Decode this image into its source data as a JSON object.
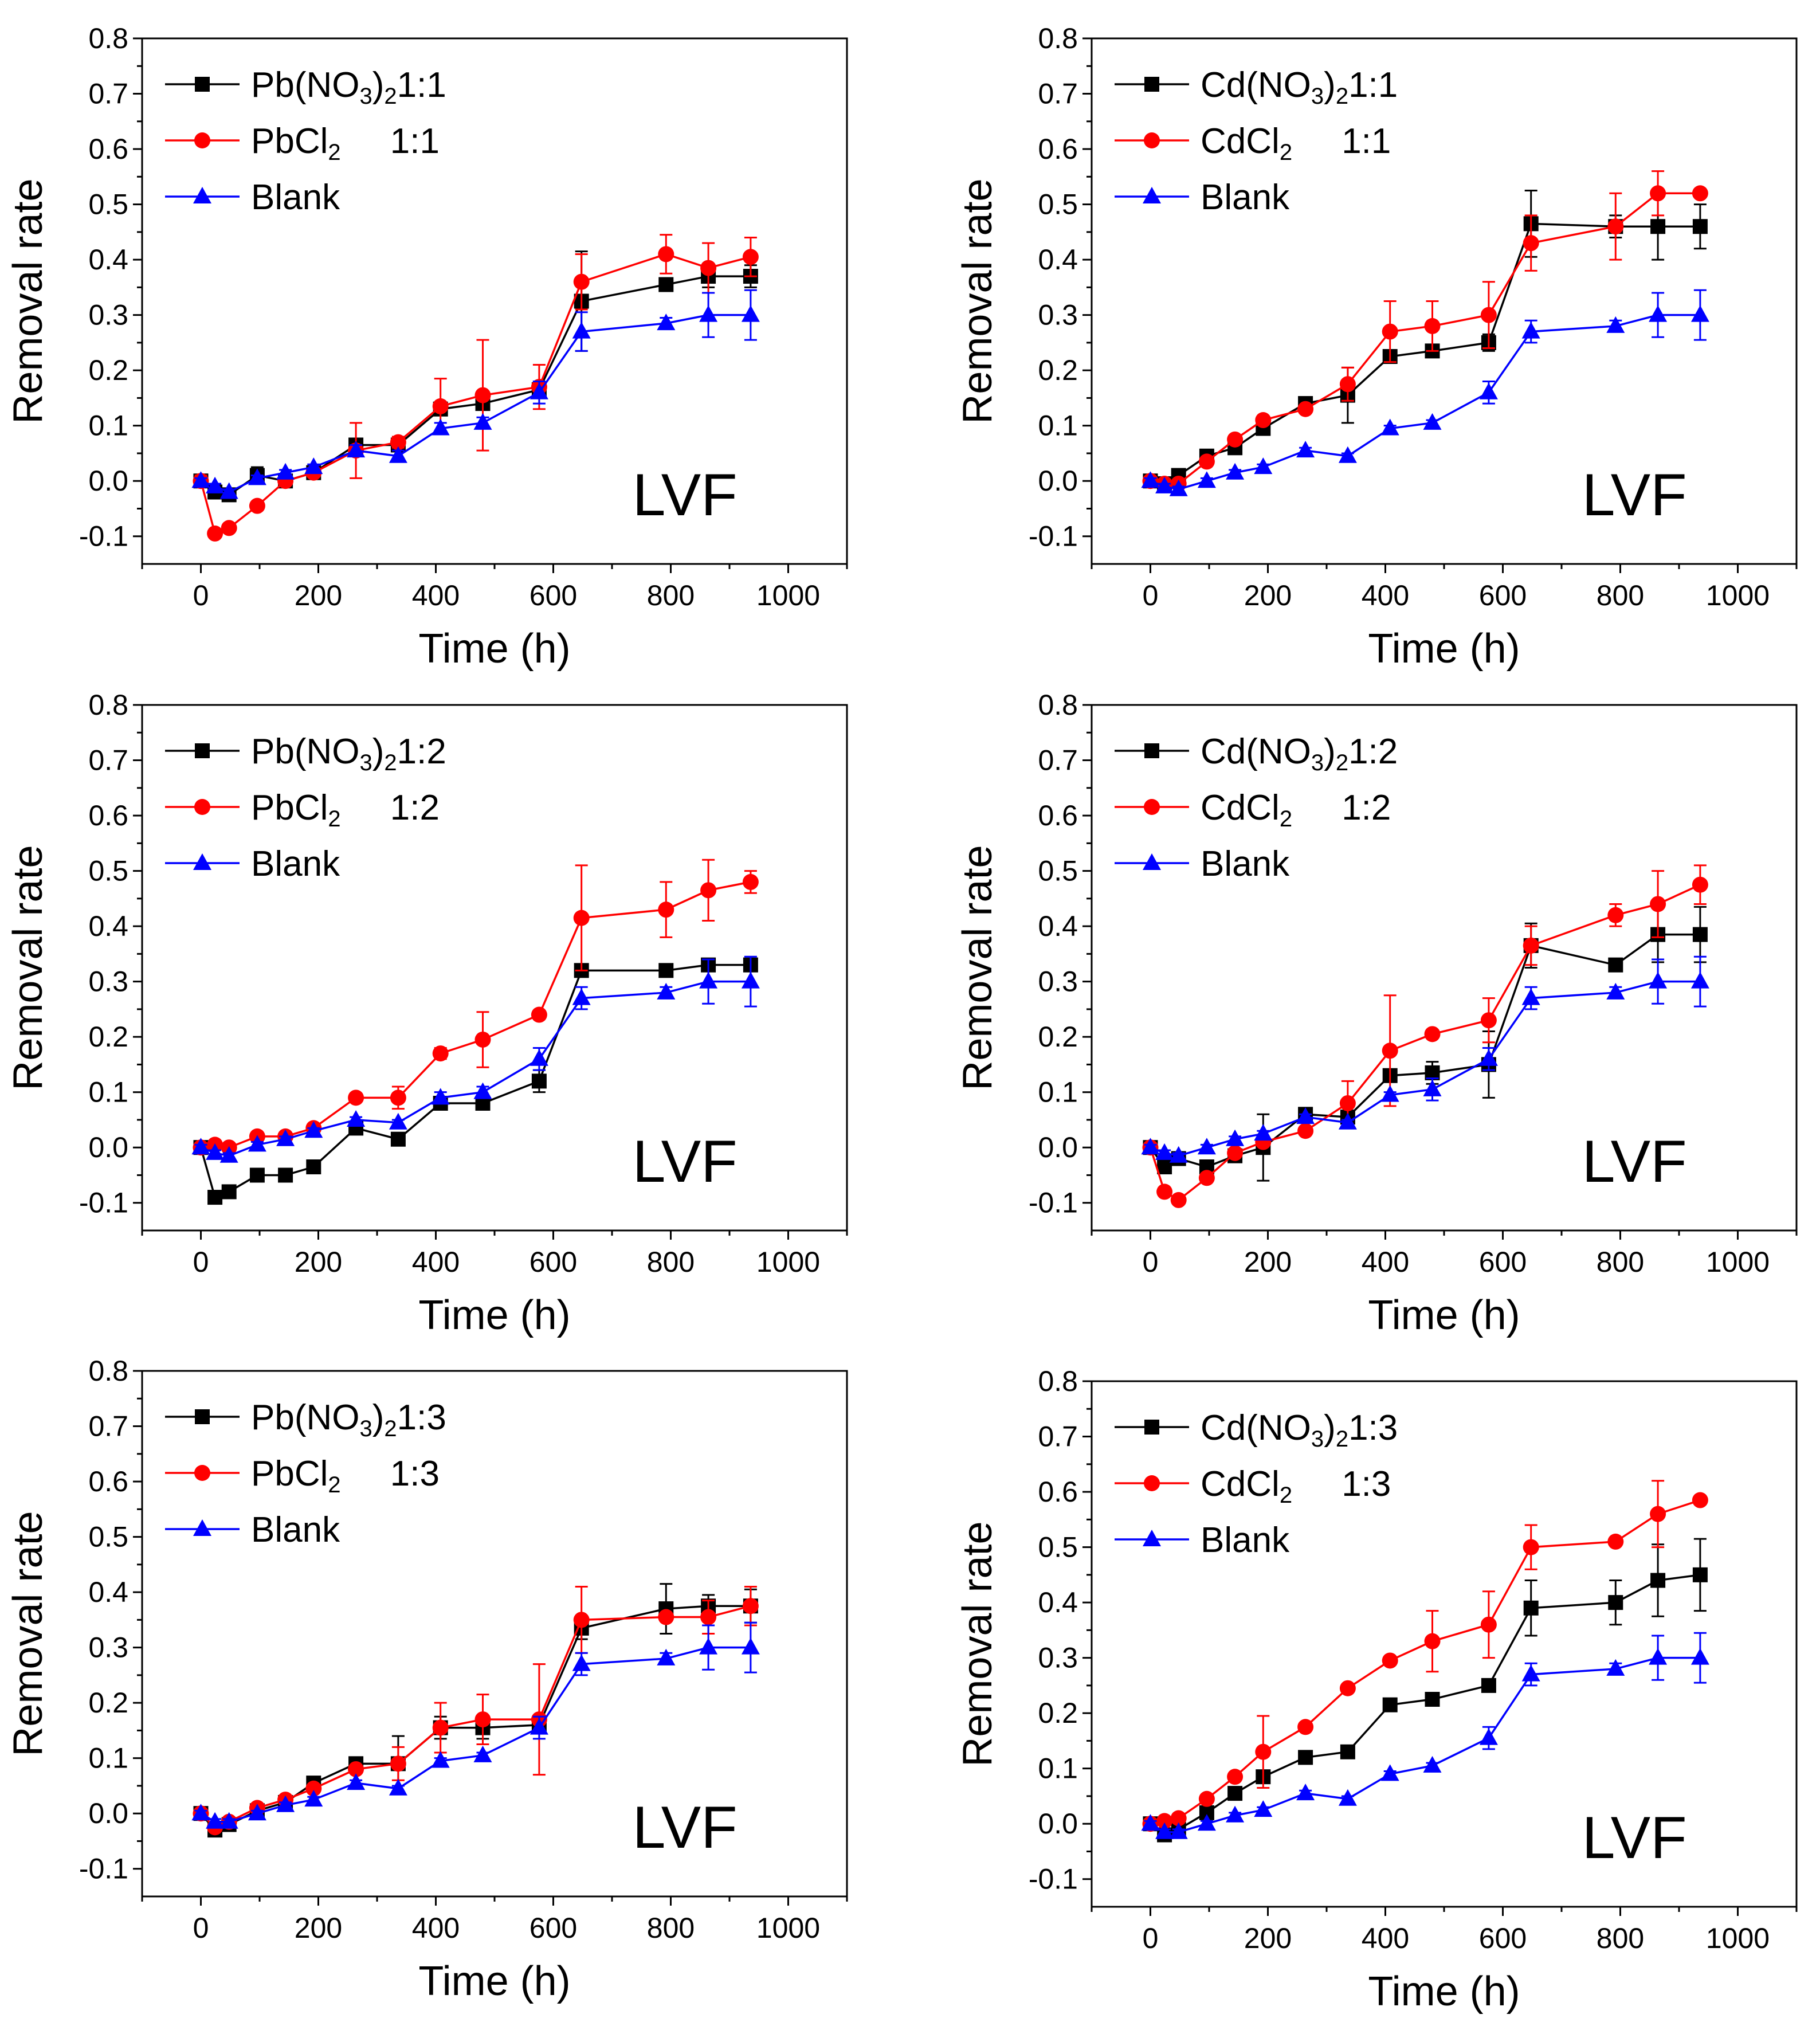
{
  "figure": {
    "panels_layout": "3 rows x 2 columns",
    "colors": {
      "series1": "#000000",
      "series2": "#ff0000",
      "series3": "#0000ff"
    }
  },
  "chart_data": [
    {
      "type": "line",
      "panel_label": "LVF",
      "xlabel": "Time (h)",
      "ylabel": "Removal rate",
      "xlim": [
        -100,
        1100
      ],
      "ylim": [
        -0.15,
        0.8
      ],
      "xticks": [
        "0",
        "200",
        "400",
        "600",
        "800",
        "1000"
      ],
      "yticks": [
        "-0.1",
        "0.0",
        "0.1",
        "0.2",
        "0.3",
        "0.4",
        "0.5",
        "0.6",
        "0.7",
        "0.8"
      ],
      "x": [
        0,
        24,
        48,
        96,
        144,
        192,
        264,
        336,
        408,
        480,
        576,
        648,
        792,
        864,
        936
      ],
      "legend": [
        {
          "prefix": "Pb(NO",
          "sub1": "3",
          "mid": ")",
          "sub2": "2",
          "suffix": "1:1"
        },
        {
          "prefix": "PbCl",
          "sub1": "2",
          "suffix": "     1:1"
        },
        {
          "prefix": "Blank"
        }
      ],
      "series": [
        {
          "name": "Pb(NO3)2 1:1",
          "marker": "square",
          "values": [
            0.0,
            -0.02,
            -0.025,
            0.01,
            0.0,
            0.015,
            0.065,
            0.065,
            0.13,
            0.14,
            0.165,
            0.325,
            0.355,
            0.37,
            0.37
          ],
          "errors": [
            0.01,
            0.01,
            0.01,
            0.015,
            0.01,
            0.01,
            0.01,
            0.01,
            0.01,
            0.01,
            0.015,
            0.09,
            0.01,
            0.02,
            0.02
          ]
        },
        {
          "name": "PbCl2 1:1",
          "marker": "circle",
          "values": [
            0.0,
            -0.095,
            -0.085,
            -0.045,
            0.0,
            0.015,
            0.055,
            0.07,
            0.135,
            0.155,
            0.17,
            0.36,
            0.41,
            0.385,
            0.405
          ],
          "errors": [
            0.01,
            0.005,
            0.005,
            0.005,
            0.005,
            0.005,
            0.05,
            0.01,
            0.05,
            0.1,
            0.04,
            0.05,
            0.035,
            0.045,
            0.035
          ]
        },
        {
          "name": "Blank",
          "marker": "triangle",
          "values": [
            0.0,
            -0.01,
            -0.02,
            0.005,
            0.015,
            0.025,
            0.055,
            0.045,
            0.095,
            0.105,
            0.16,
            0.27,
            0.285,
            0.3,
            0.3
          ],
          "errors": [
            0.005,
            0.005,
            0.005,
            0.005,
            0.005,
            0.005,
            0.01,
            0.01,
            0.01,
            0.01,
            0.02,
            0.035,
            0.01,
            0.04,
            0.045
          ]
        }
      ]
    },
    {
      "type": "line",
      "panel_label": "LVF",
      "xlabel": "Time (h)",
      "ylabel": "Removal rate",
      "xlim": [
        -100,
        1100
      ],
      "ylim": [
        -0.15,
        0.8
      ],
      "xticks": [
        "0",
        "200",
        "400",
        "600",
        "800",
        "1000"
      ],
      "yticks": [
        "-0.1",
        "0.0",
        "0.1",
        "0.2",
        "0.3",
        "0.4",
        "0.5",
        "0.6",
        "0.7",
        "0.8"
      ],
      "x": [
        0,
        24,
        48,
        96,
        144,
        192,
        264,
        336,
        408,
        480,
        576,
        648,
        792,
        864,
        936
      ],
      "legend": [
        {
          "prefix": "Cd(NO",
          "sub1": "3",
          "mid": ")",
          "sub2": "2",
          "suffix": "1:1"
        },
        {
          "prefix": "CdCl",
          "sub1": "2",
          "suffix": "     1:1"
        },
        {
          "prefix": "Blank"
        }
      ],
      "series": [
        {
          "name": "Cd(NO3)2 1:1",
          "marker": "square",
          "values": [
            0.0,
            -0.005,
            0.01,
            0.045,
            0.06,
            0.095,
            0.14,
            0.155,
            0.225,
            0.235,
            0.25,
            0.465,
            0.46,
            0.46,
            0.46
          ],
          "errors": [
            0.005,
            0.005,
            0.005,
            0.01,
            0.01,
            0.01,
            0.01,
            0.05,
            0.01,
            0.01,
            0.015,
            0.06,
            0.02,
            0.06,
            0.04
          ]
        },
        {
          "name": "CdCl2 1:1",
          "marker": "circle",
          "values": [
            0.0,
            -0.005,
            -0.005,
            0.035,
            0.075,
            0.11,
            0.13,
            0.175,
            0.27,
            0.28,
            0.3,
            0.43,
            0.46,
            0.52,
            0.52
          ],
          "errors": [
            0.005,
            0.005,
            0.005,
            0.005,
            0.005,
            0.005,
            0.005,
            0.03,
            0.055,
            0.045,
            0.06,
            0.05,
            0.06,
            0.04,
            0.005
          ]
        },
        {
          "name": "Blank",
          "marker": "triangle",
          "values": [
            0.0,
            -0.01,
            -0.015,
            0.0,
            0.015,
            0.025,
            0.055,
            0.045,
            0.095,
            0.105,
            0.16,
            0.27,
            0.28,
            0.3,
            0.3
          ],
          "errors": [
            0.005,
            0.005,
            0.005,
            0.005,
            0.005,
            0.005,
            0.005,
            0.005,
            0.005,
            0.005,
            0.02,
            0.02,
            0.01,
            0.04,
            0.045
          ]
        }
      ]
    },
    {
      "type": "line",
      "panel_label": "LVF",
      "xlabel": "Time (h)",
      "ylabel": "Removal rate",
      "xlim": [
        -100,
        1100
      ],
      "ylim": [
        -0.15,
        0.8
      ],
      "xticks": [
        "0",
        "200",
        "400",
        "600",
        "800",
        "1000"
      ],
      "yticks": [
        "-0.1",
        "0.0",
        "0.1",
        "0.2",
        "0.3",
        "0.4",
        "0.5",
        "0.6",
        "0.7",
        "0.8"
      ],
      "x": [
        0,
        24,
        48,
        96,
        144,
        192,
        264,
        336,
        408,
        480,
        576,
        648,
        792,
        864,
        936
      ],
      "legend": [
        {
          "prefix": "Pb(NO",
          "sub1": "3",
          "mid": ")",
          "sub2": "2",
          "suffix": "1:2"
        },
        {
          "prefix": "PbCl",
          "sub1": "2",
          "suffix": "     1:2"
        },
        {
          "prefix": "Blank"
        }
      ],
      "series": [
        {
          "name": "Pb(NO3)2 1:2",
          "marker": "square",
          "values": [
            0.0,
            -0.09,
            -0.08,
            -0.05,
            -0.05,
            -0.035,
            0.035,
            0.015,
            0.08,
            0.08,
            0.12,
            0.32,
            0.32,
            0.33,
            0.33
          ],
          "errors": [
            0.005,
            0.005,
            0.005,
            0.005,
            0.005,
            0.005,
            0.005,
            0.005,
            0.005,
            0.005,
            0.02,
            0.005,
            0.005,
            0.005,
            0.005
          ]
        },
        {
          "name": "PbCl2 1:2",
          "marker": "circle",
          "values": [
            0.0,
            0.005,
            0.0,
            0.02,
            0.02,
            0.035,
            0.09,
            0.09,
            0.17,
            0.195,
            0.24,
            0.415,
            0.43,
            0.465,
            0.48
          ],
          "errors": [
            0.005,
            0.005,
            0.005,
            0.005,
            0.005,
            0.005,
            0.005,
            0.02,
            0.01,
            0.05,
            0.005,
            0.095,
            0.05,
            0.055,
            0.02
          ]
        },
        {
          "name": "Blank",
          "marker": "triangle",
          "values": [
            0.0,
            -0.01,
            -0.015,
            0.005,
            0.015,
            0.03,
            0.05,
            0.045,
            0.09,
            0.1,
            0.16,
            0.27,
            0.28,
            0.3,
            0.3
          ],
          "errors": [
            0.005,
            0.005,
            0.005,
            0.005,
            0.005,
            0.005,
            0.005,
            0.005,
            0.01,
            0.01,
            0.02,
            0.02,
            0.01,
            0.04,
            0.045
          ]
        }
      ]
    },
    {
      "type": "line",
      "panel_label": "LVF",
      "xlabel": "Time (h)",
      "ylabel": "Removal rate",
      "xlim": [
        -100,
        1100
      ],
      "ylim": [
        -0.15,
        0.8
      ],
      "xticks": [
        "0",
        "200",
        "400",
        "600",
        "800",
        "1000"
      ],
      "yticks": [
        "-0.1",
        "0.0",
        "0.1",
        "0.2",
        "0.3",
        "0.4",
        "0.5",
        "0.6",
        "0.7",
        "0.8"
      ],
      "x": [
        0,
        24,
        48,
        96,
        144,
        192,
        264,
        336,
        408,
        480,
        576,
        648,
        792,
        864,
        936
      ],
      "legend": [
        {
          "prefix": "Cd(NO",
          "sub1": "3",
          "mid": ")",
          "sub2": "2",
          "suffix": "1:2"
        },
        {
          "prefix": "CdCl",
          "sub1": "2",
          "suffix": "     1:2"
        },
        {
          "prefix": "Blank"
        }
      ],
      "series": [
        {
          "name": "Cd(NO3)2 1:2",
          "marker": "square",
          "values": [
            0.0,
            -0.035,
            -0.02,
            -0.035,
            -0.015,
            0.0,
            0.06,
            0.055,
            0.13,
            0.135,
            0.15,
            0.365,
            0.33,
            0.385,
            0.385
          ],
          "errors": [
            0.005,
            0.005,
            0.005,
            0.005,
            0.01,
            0.06,
            0.005,
            0.02,
            0.01,
            0.02,
            0.06,
            0.04,
            0.005,
            0.05,
            0.05
          ]
        },
        {
          "name": "CdCl2 1:2",
          "marker": "circle",
          "values": [
            0.0,
            -0.08,
            -0.095,
            -0.055,
            -0.01,
            0.01,
            0.03,
            0.08,
            0.175,
            0.205,
            0.23,
            0.365,
            0.42,
            0.44,
            0.475
          ],
          "errors": [
            0.005,
            0.005,
            0.005,
            0.005,
            0.005,
            0.005,
            0.005,
            0.04,
            0.1,
            0.005,
            0.04,
            0.035,
            0.02,
            0.06,
            0.035
          ]
        },
        {
          "name": "Blank",
          "marker": "triangle",
          "values": [
            0.0,
            -0.01,
            -0.015,
            0.0,
            0.015,
            0.025,
            0.055,
            0.045,
            0.095,
            0.105,
            0.16,
            0.27,
            0.28,
            0.3,
            0.3
          ],
          "errors": [
            0.005,
            0.005,
            0.005,
            0.005,
            0.005,
            0.005,
            0.005,
            0.005,
            0.005,
            0.02,
            0.02,
            0.02,
            0.01,
            0.04,
            0.045
          ]
        }
      ]
    },
    {
      "type": "line",
      "panel_label": "LVF",
      "xlabel": "Time (h)",
      "ylabel": "Removal rate",
      "xlim": [
        -100,
        1100
      ],
      "ylim": [
        -0.15,
        0.8
      ],
      "xticks": [
        "0",
        "200",
        "400",
        "600",
        "800",
        "1000"
      ],
      "yticks": [
        "-0.1",
        "0.0",
        "0.1",
        "0.2",
        "0.3",
        "0.4",
        "0.5",
        "0.6",
        "0.7",
        "0.8"
      ],
      "x": [
        0,
        24,
        48,
        96,
        144,
        192,
        264,
        336,
        408,
        480,
        576,
        648,
        792,
        864,
        936
      ],
      "legend": [
        {
          "prefix": "Pb(NO",
          "sub1": "3",
          "mid": ")",
          "sub2": "2",
          "suffix": "1:3"
        },
        {
          "prefix": "PbCl",
          "sub1": "2",
          "suffix": "     1:3"
        },
        {
          "prefix": "Blank"
        }
      ],
      "series": [
        {
          "name": "Pb(NO3)2 1:3",
          "marker": "square",
          "values": [
            0.0,
            -0.03,
            -0.02,
            0.005,
            0.02,
            0.055,
            0.09,
            0.09,
            0.155,
            0.155,
            0.16,
            0.335,
            0.37,
            0.375,
            0.375
          ],
          "errors": [
            0.005,
            0.005,
            0.005,
            0.005,
            0.005,
            0.01,
            0.005,
            0.05,
            0.02,
            0.02,
            0.015,
            0.02,
            0.045,
            0.02,
            0.03
          ]
        },
        {
          "name": "PbCl2 1:3",
          "marker": "circle",
          "values": [
            0.0,
            -0.025,
            -0.015,
            0.01,
            0.025,
            0.045,
            0.08,
            0.09,
            0.155,
            0.17,
            0.17,
            0.35,
            0.355,
            0.355,
            0.375
          ],
          "errors": [
            0.005,
            0.005,
            0.005,
            0.005,
            0.005,
            0.005,
            0.005,
            0.03,
            0.045,
            0.045,
            0.1,
            0.06,
            0.005,
            0.03,
            0.035
          ]
        },
        {
          "name": "Blank",
          "marker": "triangle",
          "values": [
            0.0,
            -0.015,
            -0.015,
            0.0,
            0.015,
            0.025,
            0.055,
            0.045,
            0.095,
            0.105,
            0.155,
            0.27,
            0.28,
            0.3,
            0.3
          ],
          "errors": [
            0.005,
            0.005,
            0.005,
            0.005,
            0.005,
            0.005,
            0.005,
            0.005,
            0.005,
            0.005,
            0.02,
            0.02,
            0.01,
            0.04,
            0.045
          ]
        }
      ]
    },
    {
      "type": "line",
      "panel_label": "LVF",
      "xlabel": "Time (h)",
      "ylabel": "Removal rate",
      "xlim": [
        -100,
        1100
      ],
      "ylim": [
        -0.15,
        0.8
      ],
      "xticks": [
        "0",
        "200",
        "400",
        "600",
        "800",
        "1000"
      ],
      "yticks": [
        "-0.1",
        "0.0",
        "0.1",
        "0.2",
        "0.3",
        "0.4",
        "0.5",
        "0.6",
        "0.7",
        "0.8"
      ],
      "x": [
        0,
        24,
        48,
        96,
        144,
        192,
        264,
        336,
        408,
        480,
        576,
        648,
        792,
        864,
        936
      ],
      "legend": [
        {
          "prefix": "Cd(NO",
          "sub1": "3",
          "mid": ")",
          "sub2": "2",
          "suffix": "1:3"
        },
        {
          "prefix": "CdCl",
          "sub1": "2",
          "suffix": "     1:3"
        },
        {
          "prefix": "Blank"
        }
      ],
      "series": [
        {
          "name": "Cd(NO3)2 1:3",
          "marker": "square",
          "values": [
            0.0,
            -0.02,
            -0.01,
            0.02,
            0.055,
            0.085,
            0.12,
            0.13,
            0.215,
            0.225,
            0.25,
            0.39,
            0.4,
            0.44,
            0.45
          ],
          "errors": [
            0.005,
            0.005,
            0.005,
            0.005,
            0.005,
            0.005,
            0.005,
            0.005,
            0.005,
            0.005,
            0.005,
            0.05,
            0.04,
            0.065,
            0.065
          ]
        },
        {
          "name": "CdCl2 1:3",
          "marker": "circle",
          "values": [
            0.0,
            0.005,
            0.01,
            0.045,
            0.085,
            0.13,
            0.175,
            0.245,
            0.295,
            0.33,
            0.36,
            0.5,
            0.51,
            0.56,
            0.585
          ],
          "errors": [
            0.005,
            0.005,
            0.005,
            0.005,
            0.005,
            0.065,
            0.005,
            0.005,
            0.005,
            0.055,
            0.06,
            0.04,
            0.005,
            0.06,
            0.005
          ]
        },
        {
          "name": "Blank",
          "marker": "triangle",
          "values": [
            0.0,
            -0.015,
            -0.015,
            0.0,
            0.015,
            0.025,
            0.055,
            0.045,
            0.09,
            0.105,
            0.155,
            0.27,
            0.28,
            0.3,
            0.3
          ],
          "errors": [
            0.005,
            0.005,
            0.005,
            0.005,
            0.005,
            0.005,
            0.005,
            0.005,
            0.005,
            0.005,
            0.02,
            0.02,
            0.01,
            0.04,
            0.045
          ]
        }
      ]
    }
  ]
}
